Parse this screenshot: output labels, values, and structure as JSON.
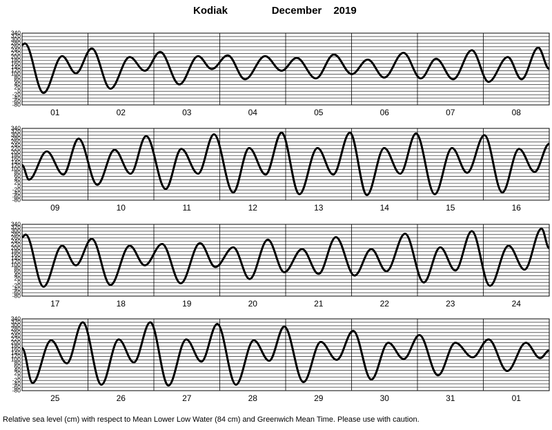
{
  "header": {
    "station": "Kodiak",
    "month": "December",
    "year": "2019"
  },
  "footer": "Relative sea level (cm) with respect to Mean Lower Low Water (84 cm) and Greenwich Mean Time. Please use with caution.",
  "chart_data": [
    {
      "type": "line",
      "categories": [
        "01",
        "02",
        "03",
        "04",
        "05",
        "06",
        "07",
        "08"
      ],
      "xlim": [
        0,
        192
      ],
      "ylim": [
        -80,
        340
      ],
      "yticks": [
        340,
        320,
        300,
        280,
        260,
        240,
        220,
        200,
        180,
        160,
        140,
        120,
        100,
        80,
        60,
        40,
        20,
        0,
        -20,
        -40,
        -60,
        -80
      ],
      "grid": true,
      "color": "#000000",
      "x": [
        0,
        1,
        7.8,
        14.6,
        19.6,
        25.4,
        32.2,
        39.2,
        44.7,
        50.3,
        57.3,
        64.1,
        69.1,
        74.9,
        81.2,
        88.5,
        94.5,
        100,
        107,
        113.6,
        120.1,
        125.9,
        131.9,
        138.9,
        145.2,
        150.8,
        157,
        163.8,
        169.9,
        176.9,
        181.9,
        188,
        192
      ],
      "values": [
        270,
        280,
        -10,
        205,
        105,
        250,
        15,
        200,
        120,
        230,
        40,
        205,
        130,
        210,
        70,
        205,
        120,
        195,
        75,
        215,
        100,
        185,
        80,
        225,
        75,
        190,
        70,
        240,
        55,
        200,
        70,
        255,
        130
      ]
    },
    {
      "type": "line",
      "categories": [
        "09",
        "10",
        "11",
        "12",
        "13",
        "14",
        "15",
        "16"
      ],
      "xlim": [
        0,
        192
      ],
      "ylim": [
        -80,
        340
      ],
      "yticks": [
        340,
        320,
        300,
        280,
        260,
        240,
        220,
        200,
        180,
        160,
        140,
        120,
        100,
        80,
        60,
        40,
        20,
        0,
        -20,
        -40,
        -60,
        -80
      ],
      "grid": true,
      "color": "#000000",
      "x": [
        0,
        2.5,
        9,
        15,
        20.6,
        27.4,
        33.7,
        39.5,
        45.2,
        52.3,
        58,
        64.1,
        69.9,
        76.9,
        82.7,
        88.7,
        94.5,
        101,
        107.6,
        113.3,
        119.4,
        125.6,
        131.9,
        137.7,
        143.5,
        150.3,
        156.6,
        162.1,
        168.4,
        174.9,
        181,
        186.7,
        192
      ],
      "values": [
        125,
        40,
        205,
        70,
        280,
        10,
        215,
        75,
        295,
        -15,
        220,
        75,
        305,
        -35,
        225,
        70,
        315,
        -45,
        225,
        70,
        315,
        -50,
        225,
        75,
        310,
        -45,
        225,
        80,
        300,
        -35,
        220,
        85,
        250
      ]
    },
    {
      "type": "line",
      "categories": [
        "17",
        "18",
        "19",
        "20",
        "21",
        "22",
        "23",
        "24"
      ],
      "xlim": [
        0,
        192
      ],
      "ylim": [
        -80,
        340
      ],
      "yticks": [
        340,
        320,
        300,
        280,
        260,
        240,
        220,
        200,
        180,
        160,
        140,
        120,
        100,
        80,
        60,
        40,
        20,
        0,
        -20,
        -40,
        -60,
        -80
      ],
      "grid": true,
      "color": "#000000",
      "x": [
        0,
        1.3,
        7.8,
        14.6,
        19.6,
        25.4,
        32.2,
        39.2,
        44.7,
        51,
        57.8,
        64.8,
        70.4,
        76.9,
        82.9,
        89.5,
        95.5,
        102,
        108,
        114.3,
        121.1,
        127.2,
        132.7,
        139.5,
        146.3,
        152.3,
        157.8,
        163.8,
        170.4,
        177.2,
        183,
        189.2,
        192
      ],
      "values": [
        265,
        280,
        -25,
        215,
        100,
        255,
        -15,
        215,
        100,
        225,
        -5,
        230,
        90,
        205,
        20,
        250,
        60,
        195,
        50,
        265,
        40,
        195,
        65,
        285,
        0,
        205,
        70,
        300,
        -20,
        215,
        75,
        315,
        200
      ]
    },
    {
      "type": "line",
      "categories": [
        "25",
        "26",
        "27",
        "28",
        "29",
        "30",
        "31",
        "01"
      ],
      "xlim": [
        0,
        192
      ],
      "ylim": [
        -80,
        340
      ],
      "yticks": [
        340,
        320,
        300,
        280,
        260,
        240,
        220,
        200,
        180,
        160,
        140,
        120,
        100,
        80,
        60,
        40,
        20,
        0,
        -20,
        -40,
        -60,
        -80
      ],
      "grid": true,
      "color": "#000000",
      "x": [
        0,
        3.8,
        10.6,
        16.3,
        22.1,
        28.9,
        35.2,
        40.7,
        46.7,
        53.3,
        59.8,
        65.3,
        71.1,
        77.9,
        84.4,
        90,
        95.5,
        102.5,
        108.8,
        114.6,
        120.6,
        127.2,
        133.4,
        139,
        144.7,
        151.5,
        157.8,
        164.1,
        169.9,
        176.7,
        183.5,
        188.7,
        192
      ],
      "values": [
        170,
        -35,
        215,
        80,
        320,
        -45,
        220,
        85,
        320,
        -50,
        220,
        90,
        310,
        -45,
        215,
        95,
        295,
        -30,
        205,
        100,
        270,
        -15,
        200,
        105,
        245,
        10,
        200,
        115,
        220,
        35,
        200,
        110,
        155
      ]
    }
  ]
}
